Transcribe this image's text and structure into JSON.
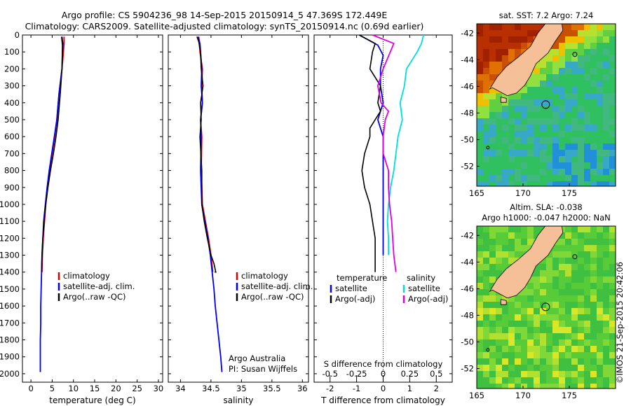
{
  "header": {
    "title_line1": "Argo profile: CS 5904236_98 14-Sep-2015 20150914_5 47.369S 172.449E",
    "title_line2": "Climatology: CARS2009. Satellite-adjusted climatology: synTS_20150914.nc (0.69d earlier)"
  },
  "side_stamp": "©IMOS 21-Sep-2015 20:42:06",
  "colors": {
    "climatology": "#dd0000",
    "satellite": "#0000ee",
    "argo": "#000000",
    "sat_salinity": "#00dddd",
    "argo_salinity": "#dd00dd"
  },
  "chart_data": [
    {
      "id": "temperature",
      "type": "line",
      "xlabel": "temperature (deg C)",
      "ylabel": "",
      "xlim": [
        -2,
        31
      ],
      "ylim": [
        2050,
        0
      ],
      "x_ticks": [
        0,
        5,
        10,
        15,
        20,
        25,
        30
      ],
      "x_tick_labels": [
        "0",
        "5",
        "10",
        "15",
        "20",
        "25",
        "30"
      ],
      "y_ticks": [
        0,
        100,
        200,
        300,
        400,
        500,
        600,
        700,
        800,
        900,
        1000,
        1100,
        1200,
        1300,
        1400,
        1500,
        1600,
        1700,
        1800,
        1900,
        2000
      ],
      "y_tick_labels": [
        "0",
        "100",
        "200",
        "300",
        "400",
        "500",
        "600",
        "700",
        "800",
        "900",
        "1000",
        "1100",
        "1200",
        "1300",
        "1400",
        "1500",
        "1600",
        "1700",
        "1800",
        "1900",
        "2000"
      ],
      "legend": [
        "climatology",
        "satellite-adj. clim.",
        "Argo(..raw -QC)"
      ],
      "series": [
        {
          "name": "climatology",
          "color": "#dd0000",
          "x": [
            7.8,
            7.8,
            7.3,
            6.6,
            6.1,
            5.6,
            5.0,
            4.4,
            3.9,
            3.5,
            3.2,
            2.9,
            2.7,
            2.6
          ],
          "y": [
            10,
            50,
            200,
            350,
            500,
            600,
            700,
            800,
            900,
            1000,
            1100,
            1200,
            1300,
            1400
          ]
        },
        {
          "name": "satellite-adj. clim.",
          "color": "#0000ee",
          "x": [
            7.3,
            7.5,
            7.3,
            6.6,
            6.1,
            5.5,
            4.9,
            4.3,
            3.8,
            3.4,
            3.0,
            2.8,
            2.6,
            2.5,
            2.4,
            2.3,
            2.3,
            2.2,
            2.2,
            2.2
          ],
          "y": [
            10,
            50,
            200,
            350,
            500,
            600,
            700,
            800,
            900,
            1000,
            1100,
            1200,
            1300,
            1400,
            1500,
            1600,
            1700,
            1800,
            1900,
            1990
          ]
        },
        {
          "name": "Argo(..raw -QC)",
          "color": "#000000",
          "x": [
            7.2,
            7.4,
            7.3,
            6.9,
            6.4,
            5.9,
            5.3,
            4.6,
            4.0,
            3.5,
            3.1,
            2.8,
            2.6,
            2.5
          ],
          "y": [
            10,
            60,
            200,
            350,
            500,
            600,
            700,
            800,
            900,
            1000,
            1100,
            1200,
            1300,
            1400
          ]
        }
      ]
    },
    {
      "id": "salinity",
      "type": "line",
      "xlabel": "salinity",
      "ylabel": "",
      "xlim": [
        33.8,
        36.1
      ],
      "ylim": [
        2050,
        0
      ],
      "x_ticks": [
        34,
        34.5,
        35,
        35.5,
        36
      ],
      "x_tick_labels": [
        "34",
        "34.5",
        "35",
        "35.5",
        "36"
      ],
      "legend": [
        "climatology",
        "satellite-adj. clim.",
        "Argo(..raw -QC)"
      ],
      "annotation_line1": "Argo Australia",
      "annotation_line2": "PI: Susan Wijffels",
      "series": [
        {
          "name": "climatology",
          "color": "#dd0000",
          "x": [
            34.3,
            34.31,
            34.32,
            34.36,
            34.35,
            34.36,
            34.33,
            34.35,
            34.34,
            34.36,
            34.41,
            34.46,
            34.5,
            34.53
          ],
          "y": [
            10,
            50,
            100,
            200,
            300,
            400,
            500,
            600,
            800,
            1000,
            1100,
            1200,
            1300,
            1400
          ]
        },
        {
          "name": "satellite-adj. clim.",
          "color": "#0000ee",
          "x": [
            34.29,
            34.32,
            34.33,
            34.35,
            34.34,
            34.36,
            34.33,
            34.34,
            34.33,
            34.35,
            34.4,
            34.45,
            34.49,
            34.52,
            34.55,
            34.57,
            34.6,
            34.63,
            34.66,
            34.68
          ],
          "y": [
            10,
            50,
            100,
            200,
            300,
            400,
            500,
            600,
            800,
            1000,
            1100,
            1200,
            1300,
            1400,
            1500,
            1600,
            1700,
            1800,
            1900,
            1990
          ]
        },
        {
          "name": "Argo(..raw -QC)",
          "color": "#000000",
          "x": [
            34.27,
            34.3,
            34.33,
            34.34,
            34.37,
            34.33,
            34.34,
            34.32,
            34.35,
            34.35,
            34.39,
            34.44,
            34.5,
            34.55,
            34.58,
            34.56
          ],
          "y": [
            10,
            40,
            100,
            200,
            300,
            400,
            500,
            600,
            800,
            1000,
            1100,
            1200,
            1300,
            1350,
            1400,
            1400
          ]
        }
      ]
    },
    {
      "id": "difference",
      "type": "line",
      "xlabel": "T difference from climatology",
      "xlabel_top": "S difference from climatology",
      "xlim": [
        -2.6,
        2.6
      ],
      "ylim": [
        2050,
        0
      ],
      "x_ticks": [
        -2,
        -1,
        0,
        1,
        2
      ],
      "x_tick_labels": [
        "-2",
        "-1",
        "0",
        "1",
        "2"
      ],
      "x_ticks_top_labels": [
        "-0.5",
        "-0.25",
        "0",
        "0.25",
        "0.5"
      ],
      "legend_temperature_heading": "temperature",
      "legend_salinity_heading": "salinity",
      "legend_temperature": [
        "satellite",
        "Argo(-adj)"
      ],
      "legend_salinity": [
        "satellite",
        "Argo(-adj)"
      ],
      "series": [
        {
          "name": "T satellite",
          "color": "#0000ee",
          "x": [
            -0.9,
            -0.2,
            0.0,
            -0.1,
            -0.1,
            0.0,
            -0.1,
            -0.2,
            0.0,
            0.0,
            0.0,
            0.0,
            0.0,
            0.0
          ],
          "y": [
            0,
            60,
            120,
            200,
            300,
            400,
            450,
            500,
            600,
            800,
            1000,
            1100,
            1200,
            1300
          ]
        },
        {
          "name": "T Argo(-adj)",
          "color": "#000000",
          "x": [
            -0.9,
            -0.3,
            -0.4,
            -0.5,
            -0.1,
            -0.2,
            -0.1,
            -0.3,
            -0.5,
            -0.5,
            -0.7,
            -0.8,
            -0.7,
            -0.5,
            -0.4,
            -0.3,
            -0.3
          ],
          "y": [
            0,
            50,
            100,
            200,
            300,
            400,
            450,
            500,
            550,
            600,
            700,
            800,
            900,
            1000,
            1100,
            1200,
            1400
          ]
        },
        {
          "name": "S satellite",
          "color": "#00dddd",
          "x": [
            0.38,
            0.36,
            0.32,
            0.27,
            0.22,
            0.2,
            0.16,
            0.18,
            0.14,
            0.12,
            0.1,
            0.07,
            0.05,
            0.04,
            0.05,
            0.05
          ],
          "y": [
            0,
            50,
            100,
            150,
            200,
            300,
            400,
            500,
            600,
            700,
            800,
            900,
            1000,
            1100,
            1200,
            1300
          ]
        },
        {
          "name": "S Argo(-adj)",
          "color": "#dd00dd",
          "x": [
            -0.1,
            0.1,
            0.0,
            -0.05,
            -0.02,
            0.05,
            0.02,
            0.0,
            0.0,
            0.05,
            0.05,
            0.06,
            0.08,
            0.09,
            0.1,
            0.11,
            0.12
          ],
          "y": [
            0,
            50,
            200,
            300,
            400,
            450,
            500,
            600,
            700,
            800,
            900,
            1000,
            1100,
            1200,
            1300,
            1350,
            1400
          ]
        }
      ]
    },
    {
      "id": "sst_map",
      "type": "heatmap",
      "title": "sat. SST: 7.2  Argo: 7.24",
      "xlim": [
        165,
        180
      ],
      "ylim": [
        -53.5,
        -41.3
      ],
      "x_ticks": [
        165,
        170,
        175
      ],
      "x_tick_labels": [
        "165",
        "170",
        "175"
      ],
      "y_ticks": [
        -42,
        -44,
        -46,
        -48,
        -50,
        -52
      ],
      "y_tick_labels": [
        "-42",
        "-44",
        "-46",
        "-48",
        "-50",
        "-52"
      ],
      "float_position": [
        172.449,
        -47.369
      ]
    },
    {
      "id": "sla_map",
      "type": "heatmap",
      "title_line1": "Altim. SLA: -0.038",
      "title_line2": "Argo h1000: -0.047 h2000: NaN",
      "xlim": [
        165,
        180
      ],
      "ylim": [
        -53.5,
        -41.3
      ],
      "x_ticks": [
        165,
        170,
        175
      ],
      "x_tick_labels": [
        "165",
        "170",
        "175"
      ],
      "y_ticks": [
        -42,
        -44,
        -46,
        -48,
        -50,
        -52
      ],
      "y_tick_labels": [
        "-42",
        "-44",
        "-46",
        "-48",
        "-50",
        "-52"
      ],
      "float_position": [
        172.449,
        -47.369
      ]
    }
  ]
}
